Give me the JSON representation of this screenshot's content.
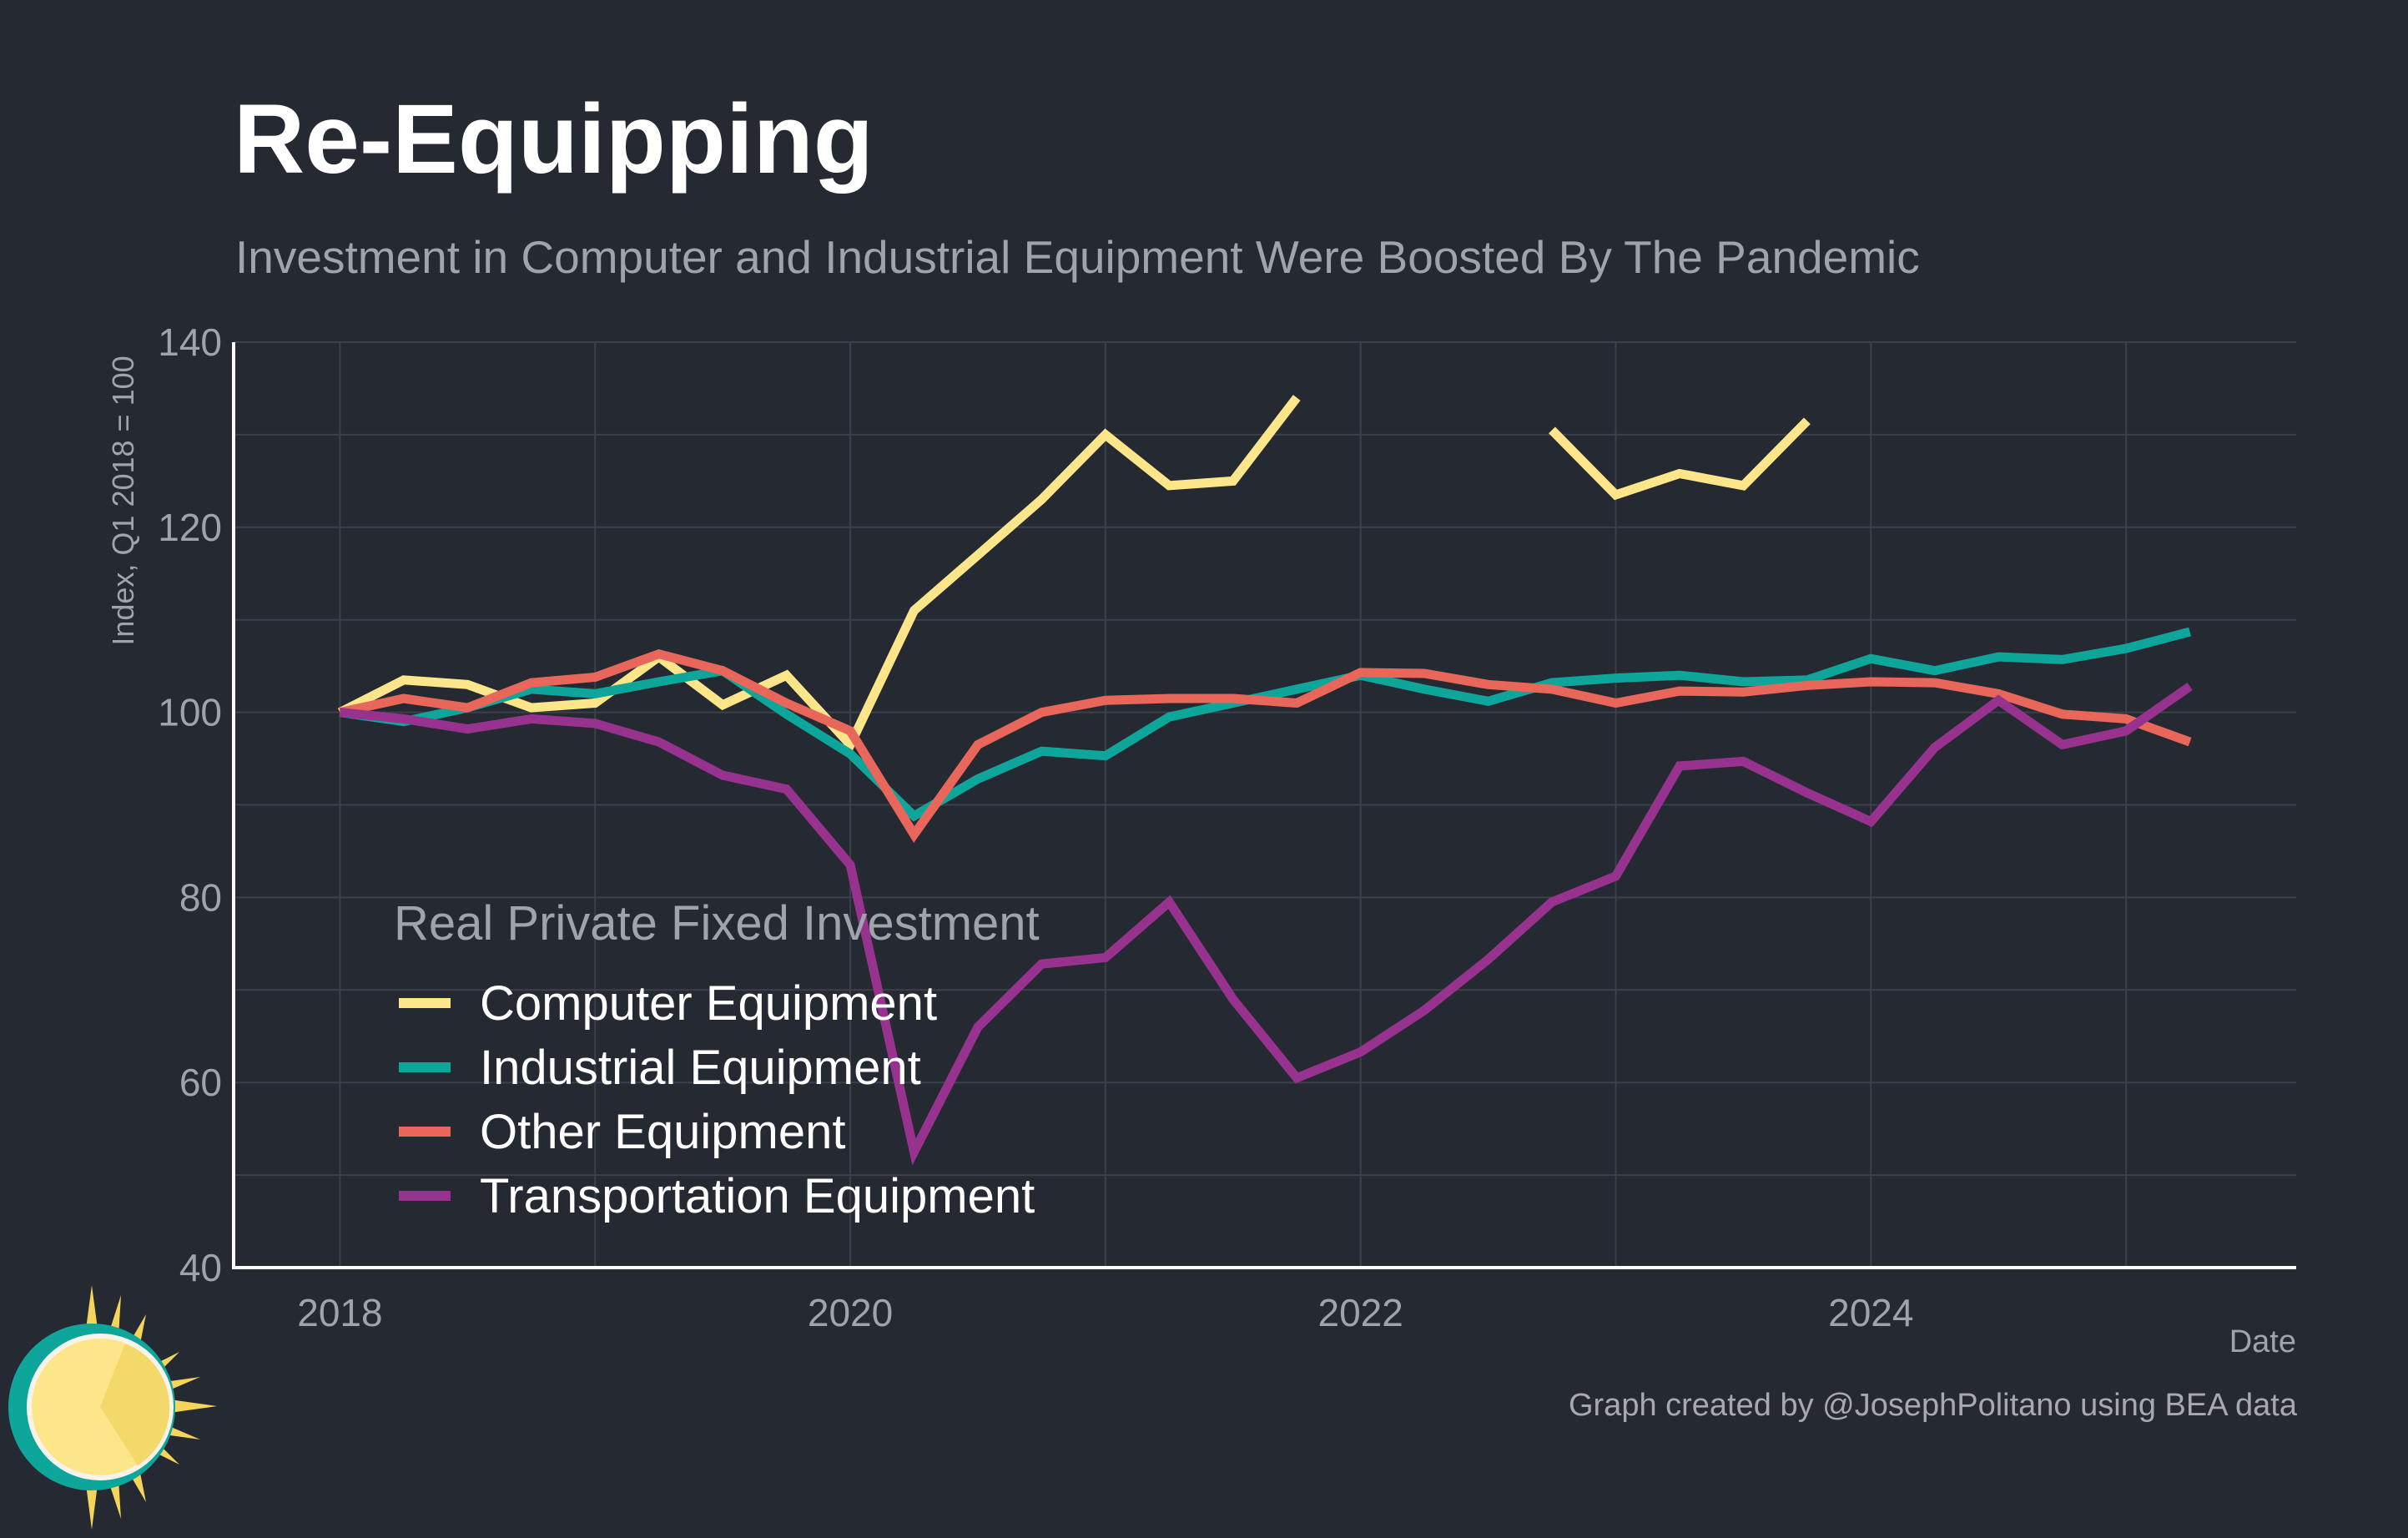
{
  "title": "Re-Equipping",
  "subtitle": "Investment in Computer and Industrial Equipment Were Boosted By The Pandemic",
  "caption": "Graph created by @JosephPolitano using BEA data",
  "colors": {
    "background": "#252932",
    "grid": "#3c4049",
    "axis": "#ffffff",
    "tick_text": "#9fa3aa",
    "computer": "#fde68a",
    "industrial": "#0ea59a",
    "other": "#e8665a",
    "transportation": "#97338e"
  },
  "chart_data": {
    "type": "line",
    "title": "Re-Equipping",
    "xlabel": "Date",
    "ylabel": "Index, Q1 2018 = 100",
    "ylim": [
      40,
      140
    ],
    "yticks": [
      40,
      60,
      80,
      100,
      120,
      140
    ],
    "xlim": [
      "2017-08",
      "2025-09"
    ],
    "xticks": [
      "2018",
      "2020",
      "2022",
      "2024"
    ],
    "grid": true,
    "legend": {
      "title": "Real Private Fixed Investment",
      "placement": "bottom-left"
    },
    "x": [
      "2018-Q1",
      "2018-Q2",
      "2018-Q3",
      "2018-Q4",
      "2019-Q1",
      "2019-Q2",
      "2019-Q3",
      "2019-Q4",
      "2020-Q1",
      "2020-Q2",
      "2020-Q3",
      "2020-Q4",
      "2021-Q1",
      "2021-Q2",
      "2021-Q3",
      "2021-Q4",
      "2022-Q1",
      "2022-Q2",
      "2022-Q3",
      "2022-Q4",
      "2023-Q1",
      "2023-Q2",
      "2023-Q3",
      "2023-Q4",
      "2024-Q1",
      "2024-Q2",
      "2024-Q3",
      "2024-Q4",
      "2025-Q1",
      "2025-Q2"
    ],
    "series": [
      {
        "name": "Computer Equipment",
        "color": "#fde68a",
        "values": [
          100,
          103.5,
          103,
          100.5,
          101,
          106,
          100.8,
          104,
          96.5,
          111,
          117,
          123,
          130,
          124.5,
          125,
          134,
          null,
          null,
          null,
          130.5,
          123.5,
          125.8,
          124.5,
          131.5,
          null,
          null,
          null,
          null,
          null,
          null
        ]
      },
      {
        "name": "Industrial Equipment",
        "color": "#0ea59a",
        "values": [
          100,
          99,
          100.5,
          102.5,
          102,
          103.3,
          104.5,
          99.8,
          95.5,
          88.8,
          92.8,
          95.8,
          95.3,
          99.5,
          101,
          102.5,
          104,
          102.5,
          101.2,
          103.2,
          103.7,
          104,
          103.3,
          103.5,
          105.8,
          104.5,
          106,
          105.7,
          106.9,
          108.7
        ]
      },
      {
        "name": "Other Equipment",
        "color": "#e8665a",
        "values": [
          100,
          101.5,
          100.5,
          103.2,
          103.8,
          106.3,
          104.5,
          101,
          98,
          86.8,
          96.5,
          100,
          101.3,
          101.5,
          101.5,
          101,
          104.3,
          104.2,
          103,
          102.5,
          101,
          102.3,
          102.2,
          102.9,
          103.3,
          103.2,
          102,
          99.8,
          99.3,
          96.8
        ]
      },
      {
        "name": "Transportation Equipment",
        "color": "#97338e",
        "values": [
          100,
          99.3,
          98.2,
          99.3,
          98.8,
          96.8,
          93.2,
          91.7,
          83.5,
          52.5,
          66,
          72.8,
          73.5,
          79.5,
          69,
          60.5,
          63.3,
          67.8,
          73.3,
          79.5,
          82.3,
          94.2,
          94.7,
          91.3,
          88.2,
          96.2,
          101.3,
          96.5,
          98,
          102.8
        ]
      }
    ]
  }
}
